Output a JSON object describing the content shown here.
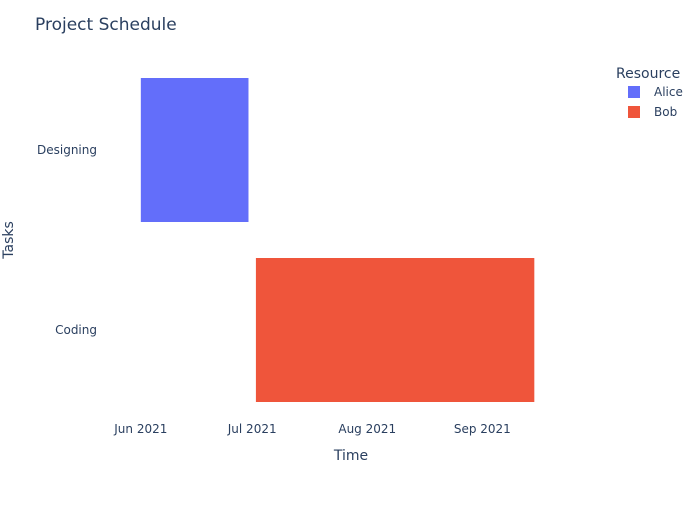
{
  "chart_data": {
    "type": "gantt",
    "title": "Project Schedule",
    "xlabel": "Time",
    "ylabel": "Tasks",
    "legend": {
      "title": "Resource",
      "position": "top-right",
      "items": [
        {
          "name": "Alice",
          "color": "#636efa"
        },
        {
          "name": "Bob",
          "color": "#ef553b"
        }
      ]
    },
    "x_ticks": [
      {
        "label": "Jun 2021",
        "date": "2021-06-01"
      },
      {
        "label": "Jul 2021",
        "date": "2021-07-01"
      },
      {
        "label": "Aug 2021",
        "date": "2021-08-01"
      },
      {
        "label": "Sep 2021",
        "date": "2021-09-01"
      }
    ],
    "x_range": [
      "2021-05-21",
      "2021-09-30"
    ],
    "grid": false,
    "tasks": [
      {
        "task": "Designing",
        "resource": "Alice",
        "start": "2021-06-01",
        "end": "2021-06-30",
        "color": "#636efa"
      },
      {
        "task": "Coding",
        "resource": "Bob",
        "start": "2021-07-02",
        "end": "2021-09-15",
        "color": "#ef553b"
      }
    ]
  }
}
